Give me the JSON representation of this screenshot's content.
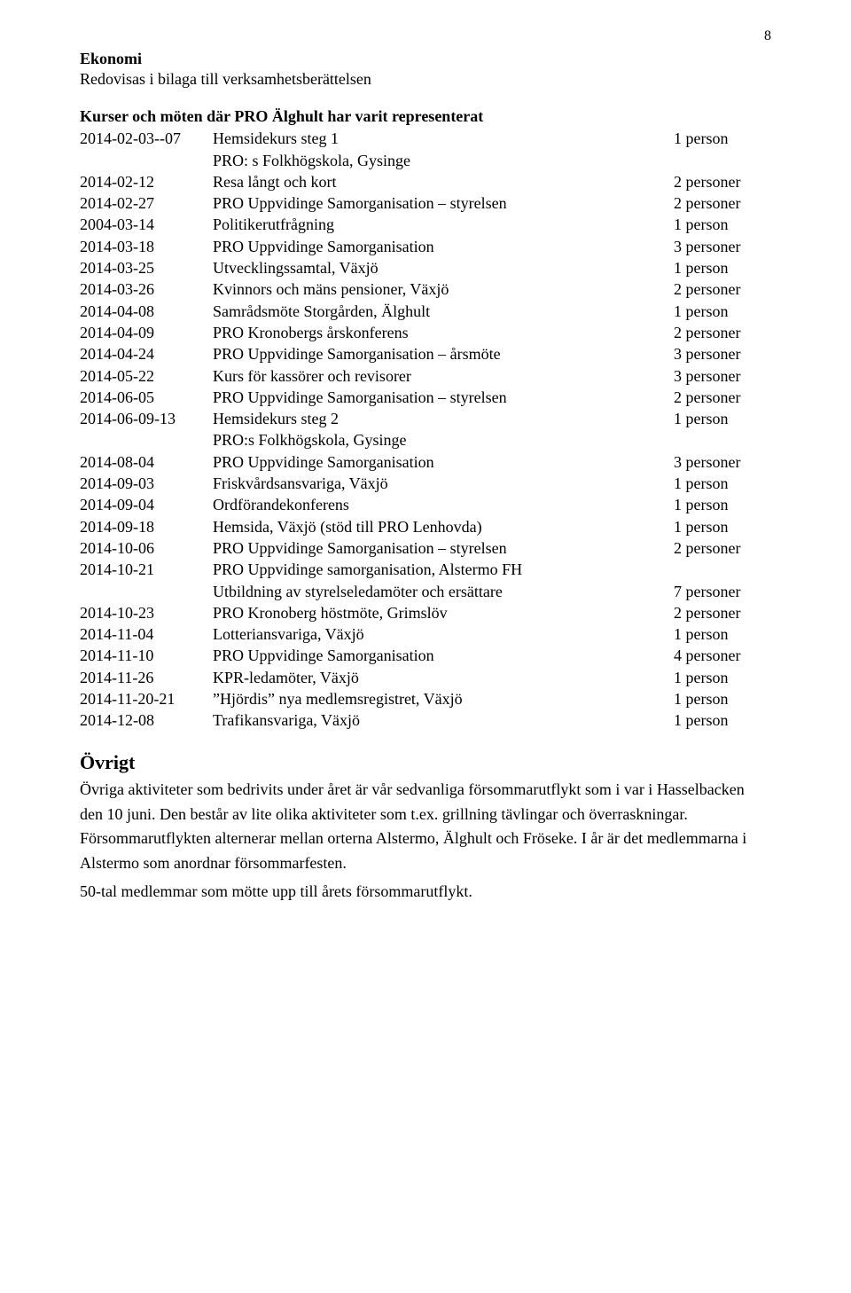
{
  "page_number": "8",
  "sec1_head": "Ekonomi",
  "sec1_sub": "Redovisas i bilaga till verksamhetsberättelsen",
  "sec2_head": "Kurser och möten där PRO Älghult har varit representerat",
  "rows": [
    {
      "date": "2014-02-03--07",
      "desc": "Hemsidekurs steg 1",
      "count": "1 person"
    },
    {
      "date": "",
      "desc": "PRO: s Folkhögskola, Gysinge",
      "count": ""
    },
    {
      "date": "2014-02-12",
      "desc": "Resa långt och kort",
      "count": "2 personer"
    },
    {
      "date": "2014-02-27",
      "desc": "PRO Uppvidinge Samorganisation – styrelsen",
      "count": "2 personer"
    },
    {
      "date": "2004-03-14",
      "desc": "Politikerutfrågning",
      "count": "1 person"
    },
    {
      "date": "2014-03-18",
      "desc": "PRO Uppvidinge Samorganisation",
      "count": "3 personer"
    },
    {
      "date": "2014-03-25",
      "desc": "Utvecklingssamtal, Växjö",
      "count": "1 person"
    },
    {
      "date": "2014-03-26",
      "desc": "Kvinnors och mäns pensioner, Växjö",
      "count": "2 personer"
    },
    {
      "date": "2014-04-08",
      "desc": "Samrådsmöte Storgården, Älghult",
      "count": "1 person"
    },
    {
      "date": "2014-04-09",
      "desc": "PRO Kronobergs årskonferens",
      "count": "2 personer"
    },
    {
      "date": "2014-04-24",
      "desc": "PRO Uppvidinge Samorganisation – årsmöte",
      "count": "3 personer"
    },
    {
      "date": "2014-05-22",
      "desc": "Kurs för kassörer och revisorer",
      "count": "3 personer"
    },
    {
      "date": "2014-06-05",
      "desc": "PRO Uppvidinge Samorganisation – styrelsen",
      "count": "2 personer"
    },
    {
      "date": "2014-06-09-13",
      "desc": "Hemsidekurs steg 2",
      "count": "1 person"
    },
    {
      "date": "",
      "desc": "PRO:s  Folkhögskola, Gysinge",
      "count": ""
    },
    {
      "date": "2014-08-04",
      "desc": "PRO Uppvidinge Samorganisation",
      "count": "3 personer"
    },
    {
      "date": "2014-09-03",
      "desc": "Friskvårdsansvariga, Växjö",
      "count": "1 person"
    },
    {
      "date": "2014-09-04",
      "desc": "Ordförandekonferens",
      "count": "1 person"
    },
    {
      "date": "2014-09-18",
      "desc": "Hemsida, Växjö (stöd till PRO Lenhovda)",
      "count": "1 person"
    },
    {
      "date": "2014-10-06",
      "desc": "PRO Uppvidinge Samorganisation – styrelsen",
      "count": "2 personer"
    },
    {
      "date": "2014-10-21",
      "desc": "PRO Uppvidinge samorganisation, Alstermo FH",
      "count": ""
    },
    {
      "date": "",
      "desc": "Utbildning av styrelseledamöter och ersättare",
      "count": "7 personer"
    },
    {
      "date": "2014-10-23",
      "desc": "PRO Kronoberg höstmöte, Grimslöv",
      "count": "2 personer"
    },
    {
      "date": "2014-11-04",
      "desc": "Lotteriansvariga, Växjö",
      "count": "1 person"
    },
    {
      "date": "2014-11-10",
      "desc": "PRO Uppvidinge Samorganisation",
      "count": "4 personer"
    },
    {
      "date": "2014-11-26",
      "desc": "KPR-ledamöter, Växjö",
      "count": "1 person"
    },
    {
      "date": "2014-11-20-21",
      "desc": "”Hjördis” nya medlemsregistret, Växjö",
      "count": "1 person"
    },
    {
      "date": "2014-12-08",
      "desc": "Trafikansvariga, Växjö",
      "count": "1 person"
    }
  ],
  "ovrigt_head": "Övrigt",
  "ovrigt_p1": "Övriga aktiviteter som bedrivits under året är vår sedvanliga försommarutflykt som i var i Hasselbacken den 10 juni. Den består av lite olika aktiviteter som t.ex. grillning tävlingar och överraskningar. Försommarutflykten alternerar mellan orterna Alstermo, Älghult och Fröseke. I år är det medlemmarna i Alstermo som anordnar försommarfesten.",
  "ovrigt_p2": "50-tal medlemmar som mötte upp till årets försommarutflykt."
}
